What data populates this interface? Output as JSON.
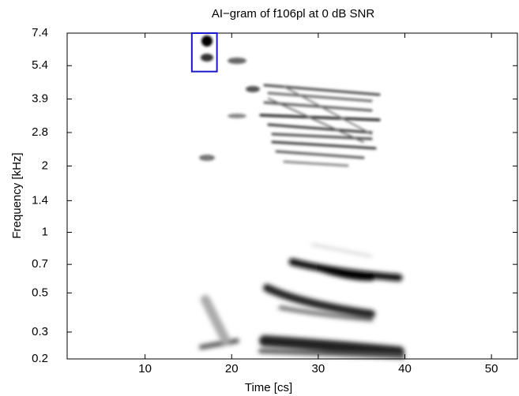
{
  "chart_data": {
    "type": "spectrogram",
    "title": "AI−gram of f106pl at 0 dB SNR",
    "x_label": "Time [cs]",
    "y_label": "Frequency [kHz]",
    "xlim": [
      1,
      53
    ],
    "xticks": [
      10,
      20,
      30,
      40,
      50
    ],
    "ylim": [
      0.2,
      7.4
    ],
    "yscale": "greenwood",
    "yticks": [
      0.2,
      0.3,
      0.5,
      0.7,
      1,
      1.4,
      2,
      2.8,
      3.9,
      5.4,
      7.4
    ],
    "box": {
      "x": [
        15.4,
        18.3
      ],
      "y": [
        5.1,
        7.4
      ],
      "color": "#1a1acc"
    }
  }
}
